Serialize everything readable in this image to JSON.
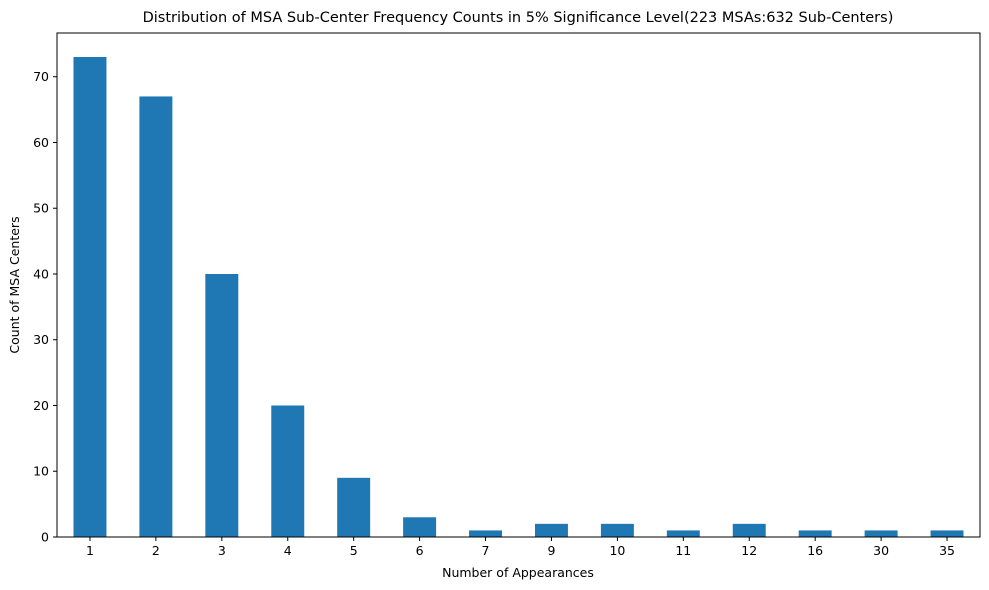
{
  "chart_data": {
    "type": "bar",
    "title": "Distribution of MSA Sub-Center Frequency Counts in 5% Significance Level(223 MSAs:632 Sub-Centers)",
    "xlabel": "Number of Appearances",
    "ylabel": "Count of MSA Centers",
    "categories": [
      "1",
      "2",
      "3",
      "4",
      "5",
      "6",
      "7",
      "9",
      "10",
      "11",
      "12",
      "16",
      "30",
      "35"
    ],
    "values": [
      73,
      67,
      40,
      20,
      9,
      3,
      1,
      2,
      2,
      1,
      2,
      1,
      1,
      1
    ],
    "ylim": [
      0,
      76.65
    ],
    "yticks": [
      0,
      10,
      20,
      30,
      40,
      50,
      60,
      70
    ],
    "grid": false,
    "bar_color": "#1f77b4"
  }
}
